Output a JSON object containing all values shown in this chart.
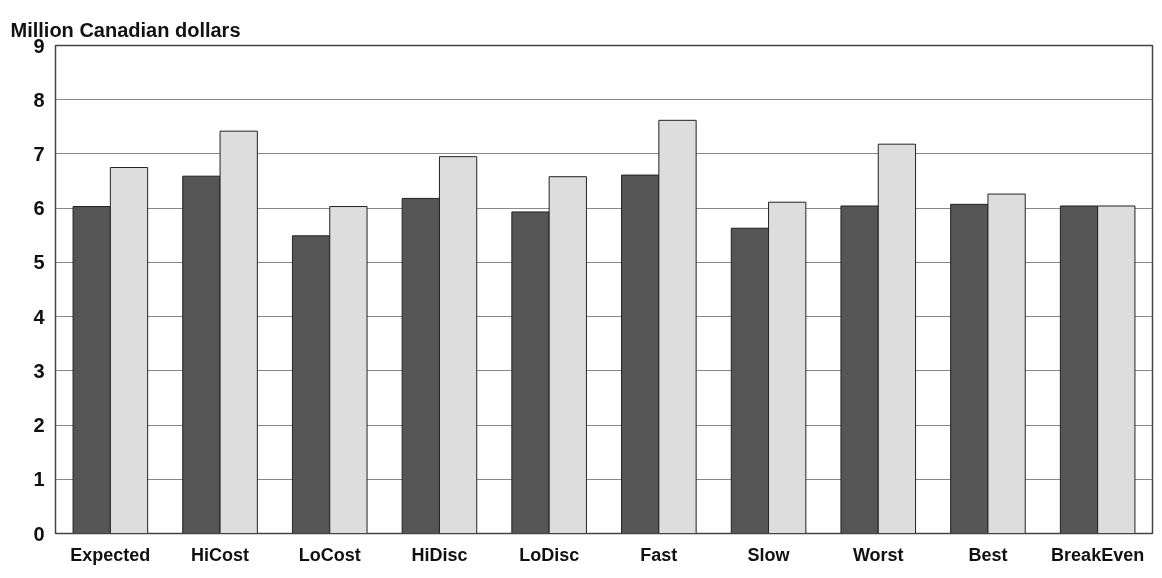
{
  "chart_data": {
    "type": "bar",
    "ylabel": "Million Canadian dollars",
    "categories": [
      "Expected",
      "HiCost",
      "LoCost",
      "HiDisc",
      "LoDisc",
      "Fast",
      "Slow",
      "Worst",
      "Best",
      "BreakEven"
    ],
    "series": [
      {
        "color": "#555555",
        "values": [
          6.03,
          6.59,
          5.49,
          6.18,
          5.93,
          6.61,
          5.63,
          6.04,
          6.07,
          6.04
        ]
      },
      {
        "color": "#dddddd",
        "values": [
          6.75,
          7.42,
          6.03,
          6.95,
          6.58,
          7.62,
          6.11,
          7.18,
          6.26,
          6.04
        ]
      }
    ],
    "ylim": [
      0,
      9
    ],
    "yticks": [
      0,
      1,
      2,
      3,
      4,
      5,
      6,
      7,
      8,
      9
    ],
    "grid": "y"
  }
}
